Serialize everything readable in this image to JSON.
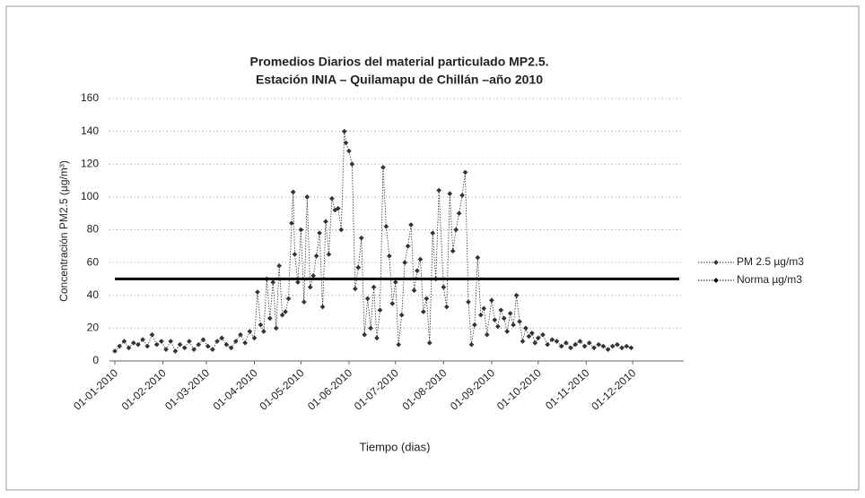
{
  "chart_data": {
    "type": "line",
    "title": "Promedios  Diarios del material particulado MP2.5.",
    "subtitle": "Estación INIA – Quilamapu de Chillán –año 2010",
    "y_label": "Concentración PM2.5 (µg/m³)",
    "x_label": "Tiempo (dias)",
    "xlim": [
      "01-01-2010",
      "31-12-2010"
    ],
    "xticks": [
      "01-01-2010",
      "01-02-2010",
      "01-03-2010",
      "01-04-2010",
      "01-05-2010",
      "01-06-2010",
      "01-07-2010",
      "01-08-2010",
      "01-09-2010",
      "01-10-2010",
      "01-11-2010",
      "01-12-2010"
    ],
    "ylim": [
      0,
      160
    ],
    "yticks": [
      0,
      20,
      40,
      60,
      80,
      100,
      120,
      140,
      160
    ],
    "grid": true,
    "legend": "right",
    "series": [
      {
        "name": "PM 2.5 µg/m3",
        "color": "#333333",
        "x": [
          "01-01-2010",
          "04-01-2010",
          "07-01-2010",
          "10-01-2010",
          "13-01-2010",
          "16-01-2010",
          "19-01-2010",
          "22-01-2010",
          "25-01-2010",
          "28-01-2010",
          "31-01-2010",
          "03-02-2010",
          "06-02-2010",
          "09-02-2010",
          "12-02-2010",
          "15-02-2010",
          "18-02-2010",
          "21-02-2010",
          "24-02-2010",
          "27-02-2010",
          "02-03-2010",
          "05-03-2010",
          "08-03-2010",
          "11-03-2010",
          "14-03-2010",
          "17-03-2010",
          "20-03-2010",
          "23-03-2010",
          "26-03-2010",
          "29-03-2010",
          "01-04-2010",
          "03-04-2010",
          "05-04-2010",
          "07-04-2010",
          "09-04-2010",
          "11-04-2010",
          "13-04-2010",
          "15-04-2010",
          "17-04-2010",
          "19-04-2010",
          "21-04-2010",
          "23-04-2010",
          "25-04-2010",
          "26-04-2010",
          "27-04-2010",
          "29-04-2010",
          "01-05-2010",
          "03-05-2010",
          "05-05-2010",
          "07-05-2010",
          "09-05-2010",
          "11-05-2010",
          "13-05-2010",
          "15-05-2010",
          "17-05-2010",
          "19-05-2010",
          "21-05-2010",
          "23-05-2010",
          "25-05-2010",
          "27-05-2010",
          "29-05-2010",
          "30-05-2010",
          "01-06-2010",
          "03-06-2010",
          "05-06-2010",
          "07-06-2010",
          "09-06-2010",
          "11-06-2010",
          "13-06-2010",
          "15-06-2010",
          "17-06-2010",
          "19-06-2010",
          "21-06-2010",
          "23-06-2010",
          "25-06-2010",
          "27-06-2010",
          "29-06-2010",
          "01-07-2010",
          "03-07-2010",
          "05-07-2010",
          "07-07-2010",
          "09-07-2010",
          "11-07-2010",
          "13-07-2010",
          "15-07-2010",
          "17-07-2010",
          "19-07-2010",
          "21-07-2010",
          "23-07-2010",
          "25-07-2010",
          "27-07-2010",
          "29-07-2010",
          "01-08-2010",
          "03-08-2010",
          "05-08-2010",
          "07-08-2010",
          "09-08-2010",
          "11-08-2010",
          "13-08-2010",
          "15-08-2010",
          "17-08-2010",
          "19-08-2010",
          "21-08-2010",
          "23-08-2010",
          "25-08-2010",
          "27-08-2010",
          "29-08-2010",
          "01-09-2010",
          "03-09-2010",
          "05-09-2010",
          "07-09-2010",
          "09-09-2010",
          "11-09-2010",
          "13-09-2010",
          "15-09-2010",
          "17-09-2010",
          "19-09-2010",
          "21-09-2010",
          "23-09-2010",
          "25-09-2010",
          "27-09-2010",
          "29-09-2010",
          "01-10-2010",
          "04-10-2010",
          "07-10-2010",
          "10-10-2010",
          "13-10-2010",
          "16-10-2010",
          "19-10-2010",
          "22-10-2010",
          "25-10-2010",
          "28-10-2010",
          "31-10-2010",
          "03-11-2010",
          "06-11-2010",
          "09-11-2010",
          "12-11-2010",
          "15-11-2010",
          "18-11-2010",
          "21-11-2010",
          "24-11-2010",
          "27-11-2010",
          "30-11-2010"
        ],
        "values": [
          6,
          9,
          12,
          8,
          11,
          10,
          13,
          9,
          16,
          10,
          12,
          7,
          12,
          6,
          10,
          8,
          12,
          7,
          10,
          13,
          9,
          7,
          12,
          14,
          10,
          8,
          12,
          16,
          11,
          18,
          14,
          42,
          22,
          18,
          50,
          26,
          48,
          20,
          58,
          28,
          30,
          38,
          84,
          103,
          65,
          48,
          80,
          36,
          100,
          45,
          52,
          64,
          78,
          33,
          85,
          65,
          99,
          92,
          93,
          80,
          140,
          133,
          128,
          120,
          44,
          57,
          75,
          16,
          38,
          20,
          45,
          14,
          31,
          118,
          82,
          64,
          35,
          48,
          10,
          28,
          60,
          70,
          83,
          43,
          55,
          62,
          30,
          38,
          11,
          78,
          50,
          104,
          45,
          33,
          102,
          67,
          80,
          90,
          101,
          115,
          36,
          10,
          22,
          63,
          28,
          32,
          16,
          37,
          25,
          21,
          31,
          26,
          18,
          29,
          22,
          40,
          24,
          12,
          20,
          15,
          17,
          11,
          14,
          16,
          10,
          13,
          12,
          9,
          11,
          8,
          10,
          12,
          9,
          11,
          8,
          10,
          9,
          7,
          9,
          10,
          8,
          9,
          8
        ]
      },
      {
        "name": "Norma µg/m3",
        "color": "#000000",
        "x": [
          "01-01-2010",
          "31-12-2010"
        ],
        "values": [
          50,
          50
        ]
      }
    ]
  }
}
